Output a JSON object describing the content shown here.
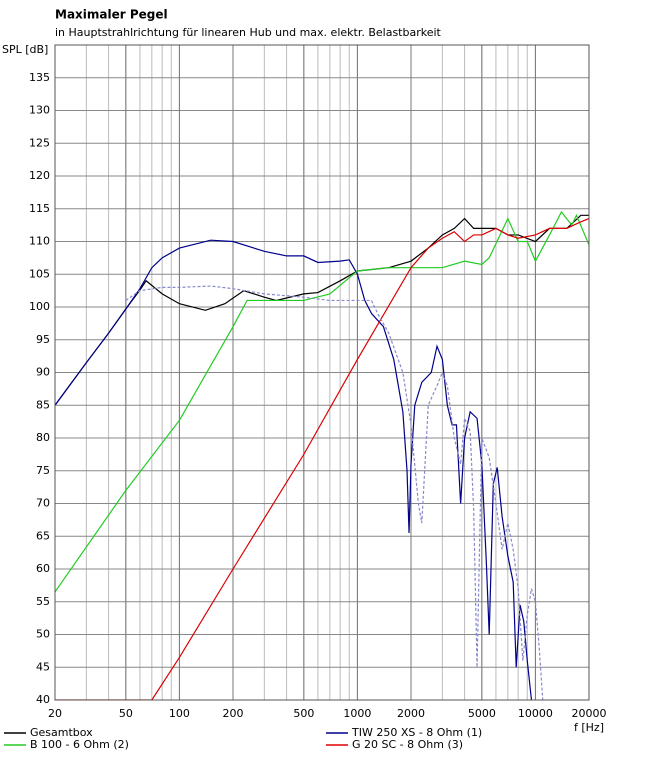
{
  "chart_data": {
    "type": "line",
    "title": "Maximaler Pegel",
    "subtitle": "in Hauptstrahlrichtung für linearen Hub und max. elektr. Belastbarkeit",
    "y_label": "SPL [dB]",
    "x_label": "f [Hz]",
    "log_x": true,
    "grid": true,
    "xlim": [
      20,
      20000
    ],
    "xticks": [
      20,
      50,
      100,
      200,
      500,
      1000,
      2000,
      5000,
      10000,
      20000
    ],
    "ylim": [
      40,
      140
    ],
    "yticks": [
      40,
      45,
      50,
      55,
      60,
      65,
      70,
      75,
      80,
      85,
      90,
      95,
      100,
      105,
      110,
      115,
      120,
      125,
      130,
      135
    ],
    "series": [
      {
        "name": "Gesamtbox",
        "color": "#000000",
        "x": [
          20,
          30,
          40,
          50,
          60,
          65,
          80,
          100,
          140,
          180,
          230,
          300,
          350,
          500,
          600,
          800,
          1000,
          1500,
          2000,
          2500,
          3000,
          3500,
          4000,
          4500,
          5000,
          6000,
          7000,
          8000,
          10000,
          12000,
          15000,
          18000,
          20000
        ],
        "values": [
          85,
          91.5,
          96,
          99.7,
          102.6,
          104,
          102,
          100.5,
          99.5,
          100.5,
          102.5,
          101.5,
          101,
          102,
          102.2,
          104,
          105.5,
          106,
          107,
          109,
          111,
          112,
          113.5,
          112,
          112,
          112,
          111,
          111,
          110,
          112,
          112,
          114,
          114
        ]
      },
      {
        "name": "TIW 250 XS - 8 Ohm (1)",
        "color": "#00008b",
        "x": [
          20,
          30,
          40,
          50,
          60,
          70,
          80,
          100,
          150,
          200,
          300,
          400,
          500,
          600,
          800,
          900,
          1000,
          1100,
          1200,
          1400,
          1600,
          1800,
          1900,
          1950,
          2000,
          2100,
          2300,
          2600,
          2800,
          3000,
          3200,
          3400,
          3600,
          3800,
          4000,
          4300,
          4700,
          5000,
          5300,
          5500,
          5800,
          6100,
          6500,
          7000,
          7500,
          7800,
          8200,
          8600,
          9000,
          9500
        ],
        "values": [
          85,
          91.5,
          96,
          99.7,
          102.8,
          106,
          107.5,
          109,
          110.2,
          110,
          108.5,
          107.8,
          107.8,
          106.8,
          107,
          107.2,
          105,
          101,
          99,
          97,
          92,
          84,
          75,
          65.5,
          76,
          85,
          88.5,
          90,
          94,
          92,
          85,
          82,
          82,
          70,
          80,
          84,
          83,
          76,
          61,
          50,
          73,
          75.5,
          68,
          62,
          58,
          45,
          54.5,
          52,
          46,
          40
        ]
      },
      {
        "name": "B 100 - 6 Ohm (2)",
        "color": "#22cc22",
        "x": [
          20,
          50,
          100,
          200,
          240,
          300,
          500,
          700,
          1000,
          1500,
          2000,
          3000,
          4000,
          5000,
          5500,
          7000,
          8000,
          9000,
          10000,
          12000,
          14000,
          16000,
          17000,
          20000
        ],
        "values": [
          56.5,
          72,
          82.7,
          97,
          101,
          101,
          101,
          102,
          105.5,
          106,
          106,
          106,
          107,
          106.5,
          107.5,
          113.5,
          110,
          110,
          107,
          111,
          114.5,
          112.5,
          114,
          109.5
        ]
      },
      {
        "name": "G 20 SC - 8 Ohm (3)",
        "color": "#dd0000",
        "x": [
          20,
          50,
          70,
          100,
          200,
          500,
          1000,
          2000,
          2500,
          3000,
          3500,
          4000,
          4500,
          5000,
          6000,
          7000,
          8000,
          10000,
          12000,
          15000,
          18000,
          20000
        ],
        "values": [
          40,
          40,
          40,
          46.5,
          60,
          77.5,
          92,
          106,
          109,
          110.5,
          111.5,
          110,
          111,
          111,
          112,
          111,
          110.5,
          111,
          112,
          112,
          113,
          113.5
        ]
      },
      {
        "color": "#8888cc",
        "dash": true,
        "x": [
          50,
          60,
          80,
          100,
          150,
          200,
          300,
          500,
          700,
          1000,
          1200,
          1300,
          1500,
          1800,
          2000,
          2200,
          2300,
          2500,
          2800,
          3000,
          3200,
          3500,
          3800,
          4000,
          4300,
          4500,
          4700,
          5000,
          5500,
          6000,
          6500,
          7000,
          7500,
          8000,
          8500,
          9000,
          9500,
          10000,
          10500,
          11000
        ],
        "values": [
          101,
          102.5,
          103,
          103,
          103.2,
          102.8,
          102,
          101.5,
          101,
          101,
          101,
          99,
          96,
          90,
          82,
          70,
          67,
          85,
          88,
          90,
          88,
          80,
          76,
          83,
          81,
          69,
          45,
          80,
          77,
          70,
          63,
          67,
          63,
          57,
          46,
          53,
          57,
          55,
          48,
          40
        ]
      }
    ]
  }
}
